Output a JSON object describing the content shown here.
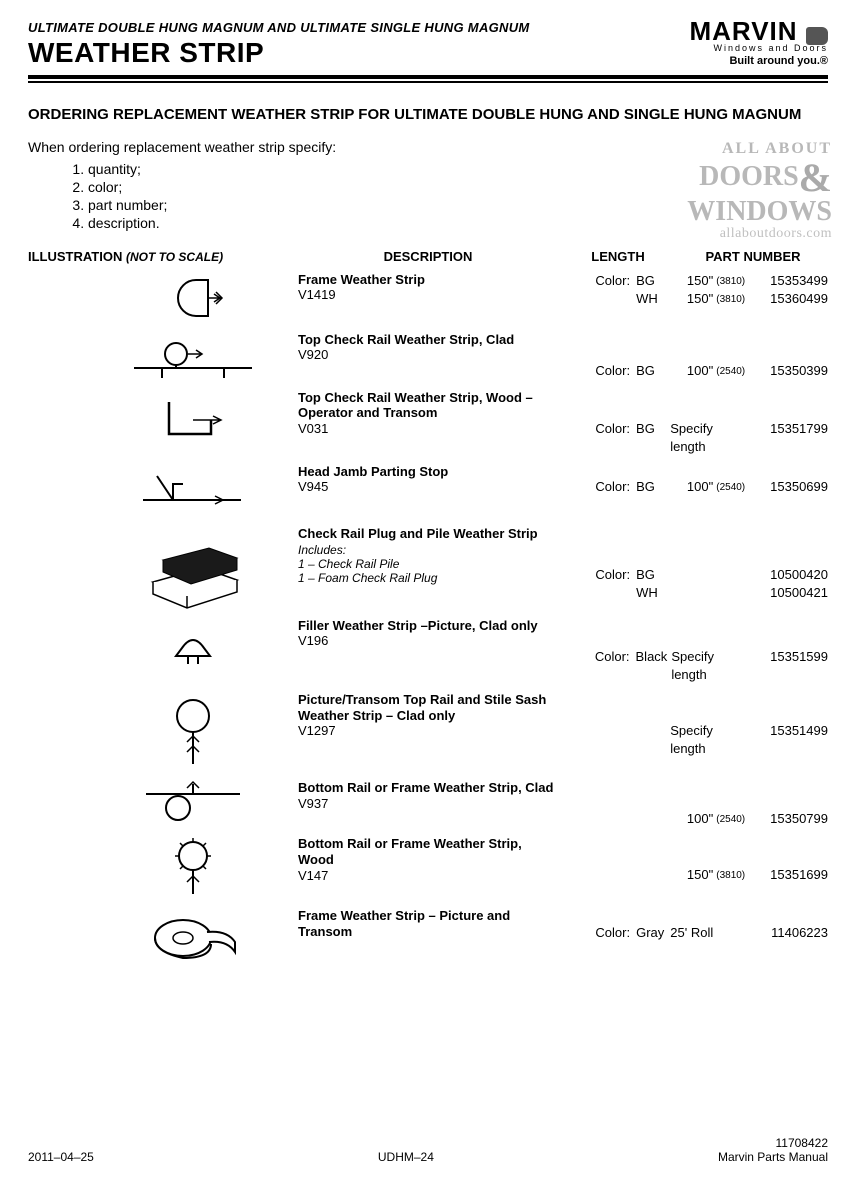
{
  "header": {
    "subtitle": "ULTIMATE DOUBLE HUNG MAGNUM AND ULTIMATE SINGLE HUNG MAGNUM",
    "title": "WEATHER STRIP",
    "brand_name": "MARVIN",
    "brand_sub": "Windows and Doors",
    "brand_tag": "Built around you.®"
  },
  "section": {
    "title": "ORDERING REPLACEMENT WEATHER STRIP FOR ULTIMATE DOUBLE HUNG AND SINGLE HUNG MAGNUM",
    "intro": "When ordering replacement weather strip specify:",
    "list": [
      "quantity;",
      "color;",
      "part number;",
      "description."
    ]
  },
  "watermark": {
    "line1": "ALL ABOUT",
    "line2a": "DOORS",
    "line2b": "WINDOWS",
    "url": "allaboutdoors.com"
  },
  "cols": {
    "ill": "ILLUSTRATION",
    "nts": "(NOT TO SCALE)",
    "desc": "DESCRIPTION",
    "len": "LENGTH",
    "part": "PART NUMBER"
  },
  "labels": {
    "color": "Color:",
    "includes": "Includes:"
  },
  "parts": [
    {
      "title": "Frame Weather Strip",
      "code": "V1419",
      "variants": [
        {
          "color_label": true,
          "color": "BG",
          "len": "150\"",
          "mm": "(3810)",
          "part": "15353499"
        },
        {
          "color_label": false,
          "color": "WH",
          "len": "150\"",
          "mm": "(3810)",
          "part": "15360499"
        }
      ]
    },
    {
      "title": "Top Check Rail Weather Strip, Clad",
      "code": "V920",
      "variants": [
        {
          "color_label": true,
          "color": "BG",
          "len": "100\"",
          "mm": "(2540)",
          "part": "15350399"
        }
      ]
    },
    {
      "title": "Top Check Rail Weather Strip, Wood – Operator and Transom",
      "code": "V031",
      "variants": [
        {
          "color_label": true,
          "color": "BG",
          "speclen": "Specify length",
          "part": "15351799"
        }
      ]
    },
    {
      "title": "Head Jamb Parting Stop",
      "code": "V945",
      "variants": [
        {
          "color_label": true,
          "color": "BG",
          "len": "100\"",
          "mm": "(2540)",
          "part": "15350699"
        }
      ]
    },
    {
      "title": "Check Rail Plug and Pile Weather Strip",
      "code": "",
      "includes": [
        "1 – Check Rail Pile",
        "1 – Foam Check Rail Plug"
      ],
      "variants": [
        {
          "color_label": true,
          "color": "BG",
          "len": "",
          "mm": "",
          "part": "10500420"
        },
        {
          "color_label": false,
          "color": "WH",
          "len": "",
          "mm": "",
          "part": "10500421"
        }
      ]
    },
    {
      "title": "Filler Weather Strip –Picture, Clad only",
      "code": "V196",
      "variants": [
        {
          "color_label": true,
          "color": "Black",
          "speclen": "Specify length",
          "part": "15351599"
        }
      ]
    },
    {
      "title": "Picture/Transom Top Rail and Stile Sash Weather Strip – Clad only",
      "code": "V1297",
      "variants": [
        {
          "color_label": false,
          "color": "",
          "speclen": "Specify length",
          "part": "15351499"
        }
      ]
    },
    {
      "title": "Bottom Rail or Frame Weather Strip, Clad",
      "code": "V937",
      "variants": [
        {
          "color_label": false,
          "color": "",
          "len": "100\"",
          "mm": "(2540)",
          "part": "15350799"
        }
      ]
    },
    {
      "title": "Bottom Rail or Frame Weather Strip, Wood",
      "code": "V147",
      "variants": [
        {
          "color_label": false,
          "color": "",
          "len": "150\"",
          "mm": "(3810)",
          "part": "15351699"
        }
      ]
    },
    {
      "title": "Frame Weather Strip – Picture and Transom",
      "code": "",
      "variants": [
        {
          "color_label": true,
          "color": "Gray",
          "len": "25' Roll",
          "mm": "",
          "part": "11406223"
        }
      ]
    }
  ],
  "footer": {
    "left": "2011–04–25",
    "center": "UDHM–24",
    "right_num": "11708422",
    "right_txt": "Marvin Parts Manual"
  },
  "svg": {
    "stroke": "#000000",
    "fill_none": "none",
    "fill_black": "#000000",
    "fill_white": "#ffffff"
  }
}
